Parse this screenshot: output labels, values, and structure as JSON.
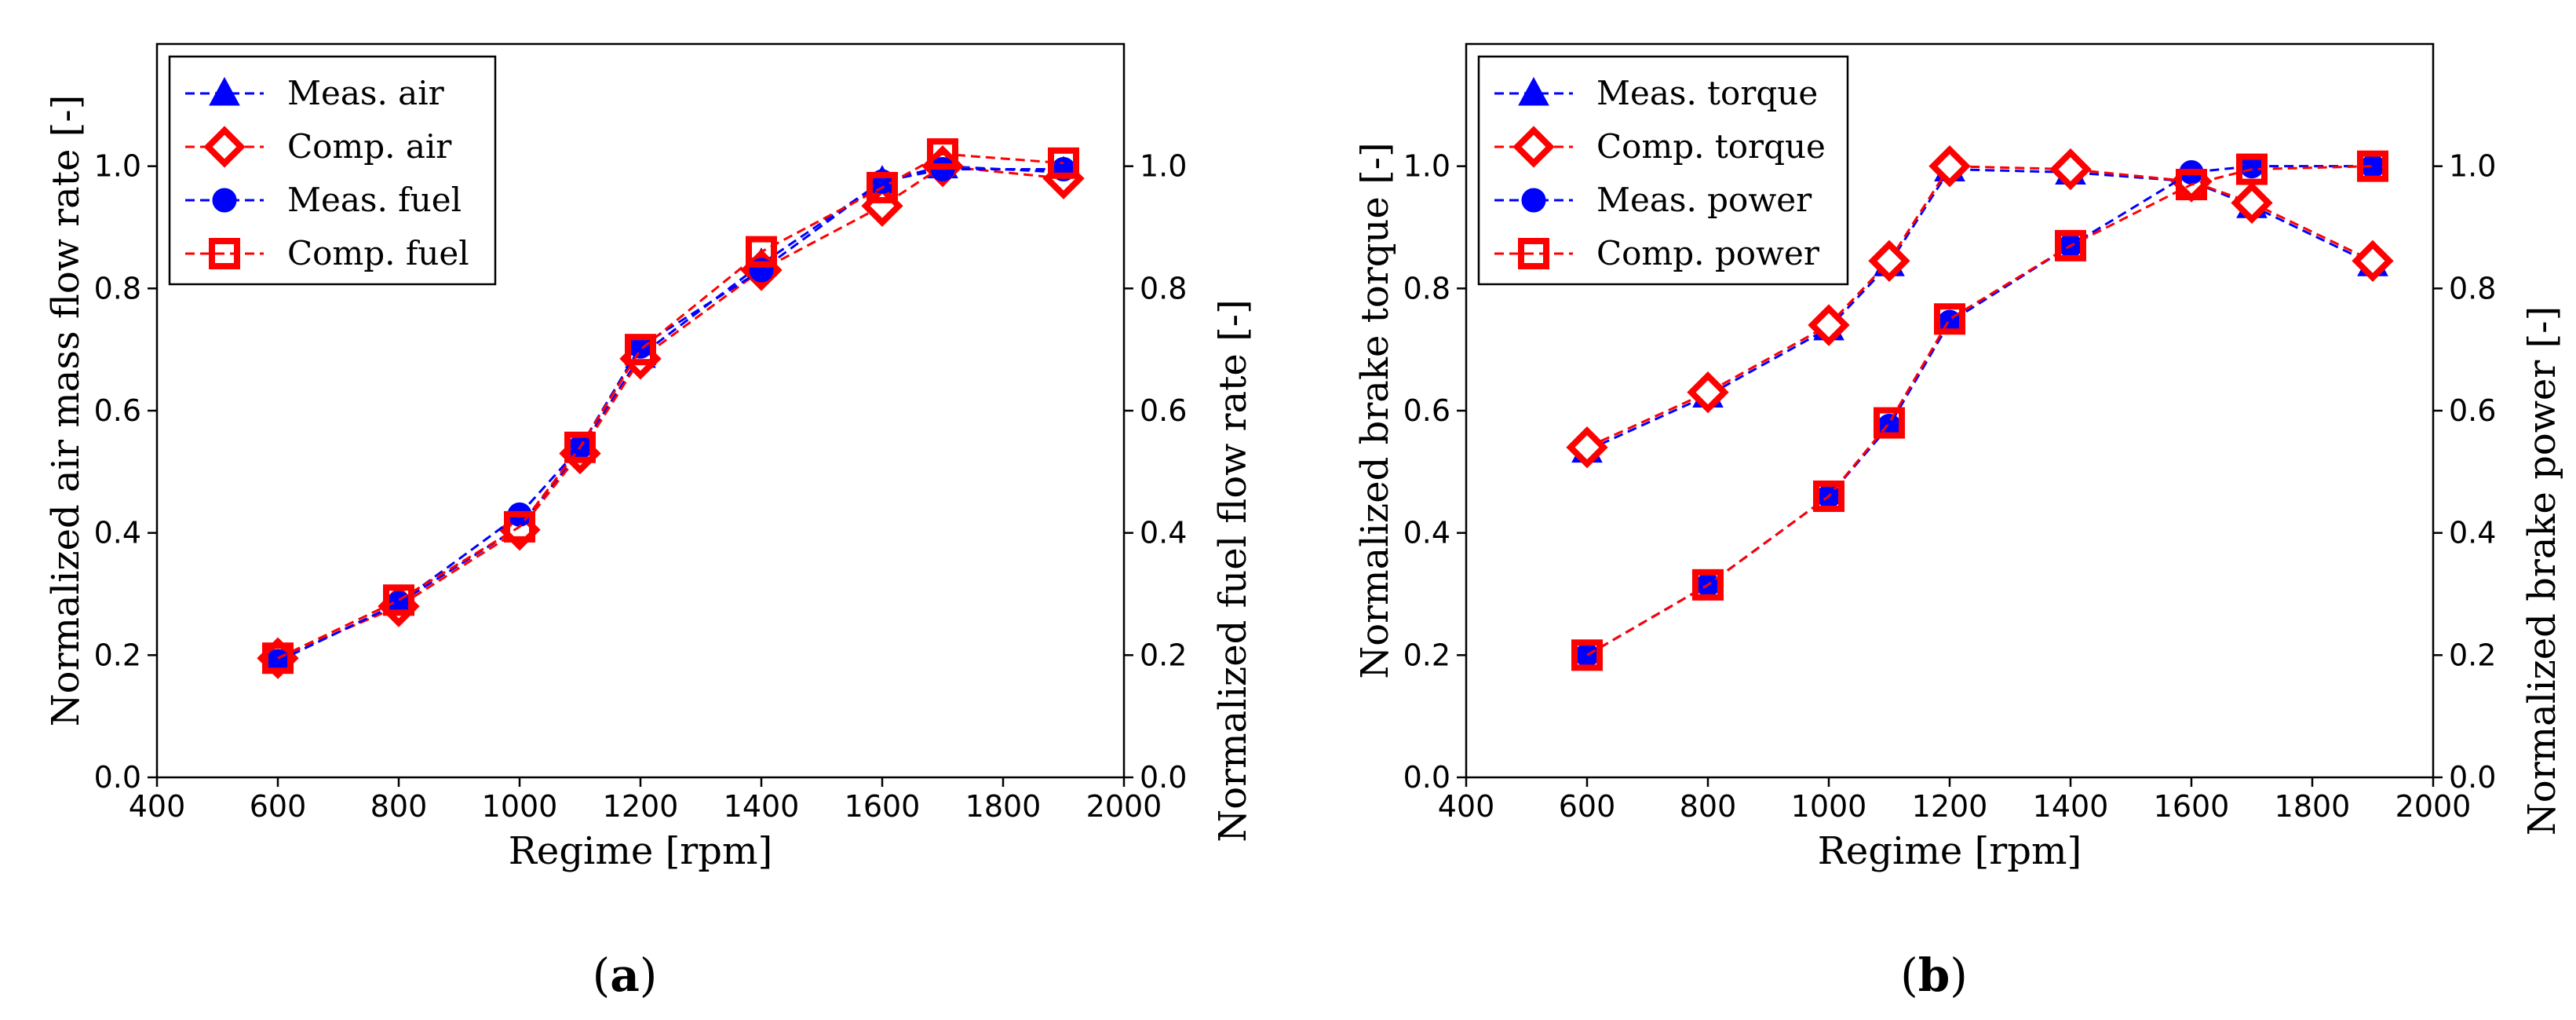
{
  "chart_data": [
    {
      "panel": "a",
      "type": "line",
      "xlabel": "Regime [rpm]",
      "ylabel": "Normalized air mass flow rate [-]",
      "y2label": "Normalized fuel flow rate [-]",
      "xlim": [
        400,
        2000
      ],
      "ylim": [
        0,
        1.2
      ],
      "y2lim": [
        0,
        1.2
      ],
      "xticks": [
        "400",
        "600",
        "800",
        "1000",
        "1200",
        "1400",
        "1600",
        "1800",
        "2000"
      ],
      "yticks": [
        "0.0",
        "0.2",
        "0.4",
        "0.6",
        "0.8",
        "1.0"
      ],
      "y2ticks": [
        "0.0",
        "0.2",
        "0.4",
        "0.6",
        "0.8",
        "1.0"
      ],
      "x": [
        600,
        800,
        1000,
        1100,
        1200,
        1400,
        1600,
        1700,
        1900
      ],
      "series": [
        {
          "name": "Meas. air",
          "axis": "left",
          "marker": "triangle",
          "color": "#0000ff",
          "values": [
            0.19,
            0.285,
            0.41,
            0.535,
            0.69,
            0.84,
            0.975,
            1.0,
            0.99
          ]
        },
        {
          "name": "Comp. air",
          "axis": "left",
          "marker": "diamond",
          "color": "#ff0000",
          "values": [
            0.195,
            0.28,
            0.405,
            0.53,
            0.685,
            0.83,
            0.935,
            1.0,
            0.98
          ]
        },
        {
          "name": "Meas. fuel",
          "axis": "right",
          "marker": "circle",
          "color": "#0000ff",
          "values": [
            0.19,
            0.285,
            0.43,
            0.54,
            0.705,
            0.83,
            0.975,
            0.995,
            0.995
          ]
        },
        {
          "name": "Comp. fuel",
          "axis": "right",
          "marker": "square",
          "color": "#ff0000",
          "values": [
            0.195,
            0.29,
            0.41,
            0.54,
            0.7,
            0.86,
            0.965,
            1.02,
            1.005
          ]
        }
      ],
      "panel_label": "a"
    },
    {
      "panel": "b",
      "type": "line",
      "xlabel": "Regime [rpm]",
      "ylabel": "Normalized brake torque [-]",
      "y2label": "Normalized brake power [-]",
      "xlim": [
        400,
        2000
      ],
      "ylim": [
        0,
        1.2
      ],
      "y2lim": [
        0,
        1.2
      ],
      "xticks": [
        "400",
        "600",
        "800",
        "1000",
        "1200",
        "1400",
        "1600",
        "1800",
        "2000"
      ],
      "yticks": [
        "0.0",
        "0.2",
        "0.4",
        "0.6",
        "0.8",
        "1.0"
      ],
      "y2ticks": [
        "0.0",
        "0.2",
        "0.4",
        "0.6",
        "0.8",
        "1.0"
      ],
      "x": [
        600,
        800,
        1000,
        1100,
        1200,
        1400,
        1600,
        1700,
        1900
      ],
      "series": [
        {
          "name": "Meas. torque",
          "axis": "left",
          "marker": "triangle",
          "color": "#0000ff",
          "values": [
            0.535,
            0.625,
            0.735,
            0.84,
            0.995,
            0.99,
            0.975,
            0.935,
            0.84
          ]
        },
        {
          "name": "Comp. torque",
          "axis": "left",
          "marker": "diamond",
          "color": "#ff0000",
          "values": [
            0.54,
            0.63,
            0.74,
            0.845,
            1.0,
            0.995,
            0.975,
            0.94,
            0.845
          ]
        },
        {
          "name": "Meas. power",
          "axis": "right",
          "marker": "circle",
          "color": "#0000ff",
          "values": [
            0.2,
            0.315,
            0.46,
            0.575,
            0.745,
            0.87,
            0.99,
            1.0,
            1.0
          ]
        },
        {
          "name": "Comp. power",
          "axis": "right",
          "marker": "square",
          "color": "#ff0000",
          "values": [
            0.2,
            0.315,
            0.46,
            0.58,
            0.75,
            0.87,
            0.97,
            0.995,
            1.0
          ]
        }
      ],
      "panel_label": "b"
    }
  ]
}
